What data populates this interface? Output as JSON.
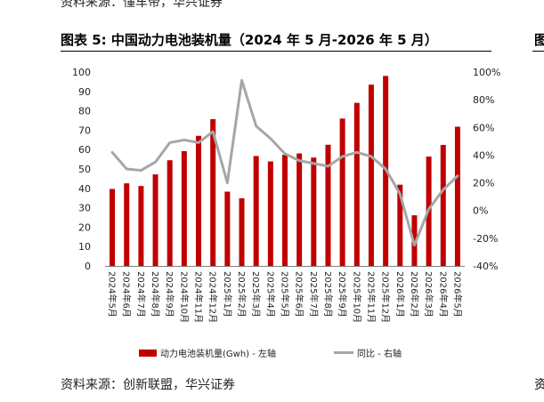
{
  "header": {
    "top_source": "资料来源：懂车帝，华兴证券",
    "title": "图表 5: 中国动力电池装机量（2024 年 5 月-2026 年 5 月）",
    "edge_title": "图",
    "edge_bottom": "资"
  },
  "footer": {
    "source": "资料来源：创新联盟，华兴证券"
  },
  "legend": {
    "bar_label": "动力电池装机量(Gwh) - 左轴",
    "line_label": "同比 - 右轴"
  },
  "colors": {
    "bar": "#c00000",
    "line": "#a6a6a6"
  },
  "chart_data": {
    "type": "bar",
    "categories": [
      "2024年5月",
      "2024年6月",
      "2024年7月",
      "2024年8月",
      "2024年9月",
      "2024年10月",
      "2024年11月",
      "2024年12月",
      "2025年1月",
      "2025年2月",
      "2025年3月",
      "2025年4月",
      "2025年5月",
      "2025年6月",
      "2025年7月",
      "2025年8月",
      "2025年9月",
      "2025年10月",
      "2025年11月",
      "2025年12月",
      "2026年1月",
      "2026年2月",
      "2026年3月",
      "2026年4月",
      "2026年5月"
    ],
    "series": [
      {
        "name": "动力电池装机量(Gwh) - 左轴",
        "type": "bar",
        "axis": "left",
        "values": [
          39.7,
          42.6,
          41.2,
          47.2,
          54.5,
          59.2,
          67.1,
          75.7,
          38.3,
          34.9,
          56.7,
          53.9,
          57.3,
          58.0,
          55.9,
          62.5,
          76.0,
          84.1,
          93.5,
          98.0,
          41.9,
          26.1,
          56.4,
          62.4,
          71.8
        ]
      },
      {
        "name": "同比 - 右轴",
        "type": "line",
        "axis": "right",
        "values": [
          42.0,
          30.0,
          29.0,
          35.0,
          49.0,
          51.0,
          49.0,
          57.0,
          20.0,
          94.0,
          61.0,
          52.0,
          41.0,
          36.0,
          34.0,
          32.0,
          39.0,
          42.0,
          39.0,
          30.0,
          12.0,
          -25.0,
          1.0,
          15.0,
          25.0
        ]
      }
    ],
    "y_left": {
      "ylim": [
        0,
        100
      ],
      "ticks": [
        "0",
        "10",
        "20",
        "30",
        "40",
        "50",
        "60",
        "70",
        "80",
        "90",
        "100"
      ]
    },
    "y_right": {
      "ylim": [
        -40,
        100
      ],
      "ticks": [
        "-40%",
        "-20%",
        "0%",
        "20%",
        "40%",
        "60%",
        "80%",
        "100%"
      ]
    },
    "legend_position": "bottom"
  }
}
